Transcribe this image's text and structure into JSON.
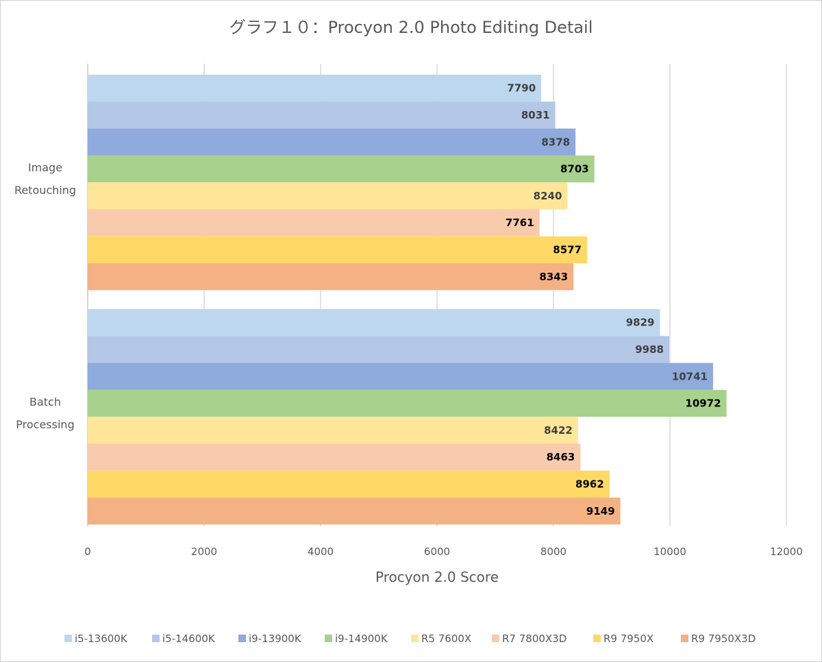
{
  "chart_data": {
    "type": "bar",
    "orientation": "horizontal",
    "title": "グラフ１０：Procyon 2.0 Photo Editing Detail",
    "xlabel": "Procyon 2.0 Score",
    "ylabel": "",
    "xlim": [
      0,
      12000
    ],
    "xticks": [
      0,
      2000,
      4000,
      6000,
      8000,
      10000,
      12000
    ],
    "grid": true,
    "legend_position": "bottom",
    "categories": [
      [
        "Image",
        "Retouching"
      ],
      [
        "Batch",
        "Processing"
      ]
    ],
    "series": [
      {
        "name": "i5-13600K",
        "color": "#bdd7ee",
        "label_color": "#404040",
        "values": [
          7790,
          9829
        ]
      },
      {
        "name": "i5-14600K",
        "color": "#b4c7e7",
        "label_color": "#404040",
        "values": [
          8031,
          9988
        ]
      },
      {
        "name": "i9-13900K",
        "color": "#8faadc",
        "label_color": "#404040",
        "values": [
          8378,
          10741
        ]
      },
      {
        "name": "i9-14900K",
        "color": "#a9d18e",
        "label_color": "#000000",
        "values": [
          8703,
          10972
        ]
      },
      {
        "name": "R5 7600X",
        "color": "#ffe699",
        "label_color": "#404040",
        "values": [
          8240,
          8422
        ]
      },
      {
        "name": "R7 7800X3D",
        "color": "#f8cbad",
        "label_color": "#000000",
        "values": [
          7761,
          8463
        ]
      },
      {
        "name": "R9 7950X",
        "color": "#ffd966",
        "label_color": "#000000",
        "values": [
          8577,
          8962
        ]
      },
      {
        "name": "R9 7950X3D",
        "color": "#f4b183",
        "label_color": "#000000",
        "values": [
          8343,
          9149
        ]
      }
    ]
  }
}
